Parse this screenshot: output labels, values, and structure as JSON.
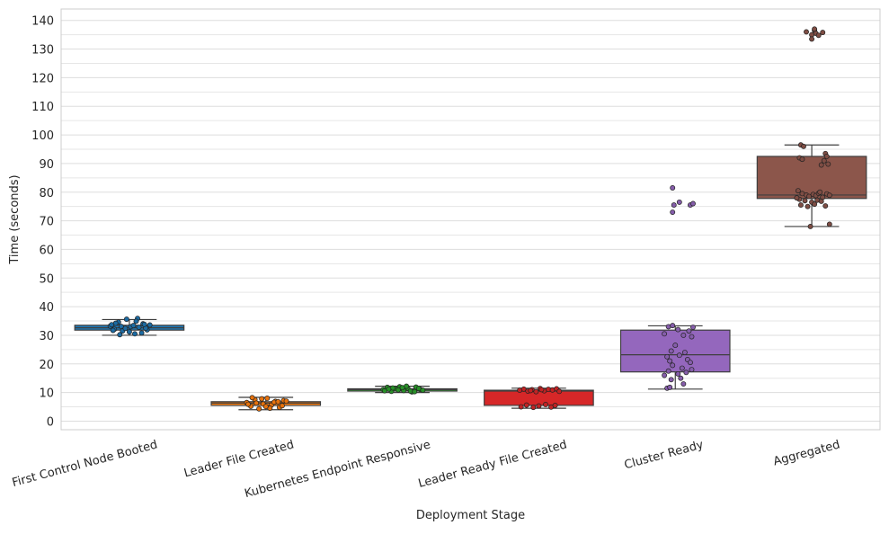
{
  "chart_data": {
    "type": "box",
    "xlabel": "Deployment Stage",
    "ylabel": "Time (seconds)",
    "ylim": [
      -3,
      144
    ],
    "y_ticks": [
      0,
      10,
      20,
      30,
      40,
      50,
      60,
      70,
      80,
      90,
      100,
      110,
      120,
      130,
      140
    ],
    "grid": true,
    "categories": [
      "First Control Node Booted",
      "Leader File Created",
      "Kubernetes Endpoint Responsive",
      "Leader Ready File Created",
      "Cluster Ready",
      "Aggregated"
    ],
    "colors": [
      "#1f77b4",
      "#ff7f0e",
      "#2ca02c",
      "#d62728",
      "#9467bd",
      "#8c564b"
    ],
    "boxes": [
      {
        "q1": 31.8,
        "median": 32.6,
        "q3": 33.5,
        "whisker_low": 30.0,
        "whisker_high": 35.5
      },
      {
        "q1": 5.5,
        "median": 6.3,
        "q3": 6.8,
        "whisker_low": 4.0,
        "whisker_high": 8.3
      },
      {
        "q1": 10.5,
        "median": 11.0,
        "q3": 11.3,
        "whisker_low": 10.0,
        "whisker_high": 12.2
      },
      {
        "q1": 5.5,
        "median": 10.5,
        "q3": 10.8,
        "whisker_low": 4.5,
        "whisker_high": 11.5
      },
      {
        "q1": 17.2,
        "median": 23.2,
        "q3": 31.8,
        "whisker_low": 11.2,
        "whisker_high": 33.3
      },
      {
        "q1": 77.8,
        "median": 79.0,
        "q3": 92.5,
        "whisker_low": 68.0,
        "whisker_high": 96.5
      }
    ],
    "points": [
      [
        {
          "dx": -0.14,
          "y": 33.2
        },
        {
          "dx": -0.11,
          "y": 32.1
        },
        {
          "dx": -0.08,
          "y": 34.6
        },
        {
          "dx": -0.05,
          "y": 31.5
        },
        {
          "dx": -0.02,
          "y": 35.6
        },
        {
          "dx": 0.01,
          "y": 33.0
        },
        {
          "dx": 0.04,
          "y": 30.5
        },
        {
          "dx": 0.07,
          "y": 32.8
        },
        {
          "dx": 0.1,
          "y": 34.0
        },
        {
          "dx": 0.13,
          "y": 31.9
        },
        {
          "dx": -0.13,
          "y": 33.7
        },
        {
          "dx": -0.07,
          "y": 30.2
        },
        {
          "dx": -0.03,
          "y": 32.4
        },
        {
          "dx": 0.03,
          "y": 33.4
        },
        {
          "dx": 0.06,
          "y": 35.9
        },
        {
          "dx": 0.12,
          "y": 32.5
        },
        {
          "dx": 0.15,
          "y": 33.6
        },
        {
          "dx": -0.1,
          "y": 34.2
        },
        {
          "dx": 0.0,
          "y": 31.2
        },
        {
          "dx": 0.09,
          "y": 30.8
        },
        {
          "dx": -0.06,
          "y": 33.1
        },
        {
          "dx": 0.05,
          "y": 34.9
        },
        {
          "dx": -0.12,
          "y": 31.7
        },
        {
          "dx": 0.11,
          "y": 33.8
        }
      ],
      [
        {
          "dx": -0.14,
          "y": 6.5
        },
        {
          "dx": -0.11,
          "y": 5.2
        },
        {
          "dx": -0.08,
          "y": 7.5
        },
        {
          "dx": -0.05,
          "y": 4.3
        },
        {
          "dx": -0.02,
          "y": 6.0
        },
        {
          "dx": 0.01,
          "y": 8.0
        },
        {
          "dx": 0.04,
          "y": 5.6
        },
        {
          "dx": 0.07,
          "y": 6.9
        },
        {
          "dx": 0.1,
          "y": 4.8
        },
        {
          "dx": 0.13,
          "y": 7.2
        },
        {
          "dx": -0.13,
          "y": 5.9
        },
        {
          "dx": -0.07,
          "y": 6.3
        },
        {
          "dx": -0.03,
          "y": 7.8
        },
        {
          "dx": 0.03,
          "y": 4.5
        },
        {
          "dx": 0.06,
          "y": 6.6
        },
        {
          "dx": 0.12,
          "y": 5.4
        },
        {
          "dx": 0.15,
          "y": 7.0
        },
        {
          "dx": -0.1,
          "y": 8.2
        },
        {
          "dx": 0.0,
          "y": 5.1
        },
        {
          "dx": 0.09,
          "y": 6.8
        }
      ],
      [
        {
          "dx": -0.14,
          "y": 11.0
        },
        {
          "dx": -0.11,
          "y": 11.8
        },
        {
          "dx": -0.08,
          "y": 10.4
        },
        {
          "dx": -0.05,
          "y": 11.3
        },
        {
          "dx": -0.02,
          "y": 12.0
        },
        {
          "dx": 0.01,
          "y": 10.7
        },
        {
          "dx": 0.04,
          "y": 11.5
        },
        {
          "dx": 0.07,
          "y": 10.2
        },
        {
          "dx": 0.1,
          "y": 11.9
        },
        {
          "dx": 0.13,
          "y": 11.1
        },
        {
          "dx": -0.13,
          "y": 10.6
        },
        {
          "dx": -0.07,
          "y": 11.6
        },
        {
          "dx": -0.03,
          "y": 10.9
        },
        {
          "dx": 0.03,
          "y": 12.2
        },
        {
          "dx": 0.06,
          "y": 10.5
        },
        {
          "dx": 0.12,
          "y": 11.4
        },
        {
          "dx": 0.15,
          "y": 10.8
        },
        {
          "dx": -0.1,
          "y": 11.2
        },
        {
          "dx": 0.0,
          "y": 11.7
        },
        {
          "dx": 0.09,
          "y": 10.3
        }
      ],
      [
        {
          "dx": -0.14,
          "y": 10.8
        },
        {
          "dx": -0.11,
          "y": 11.2
        },
        {
          "dx": -0.08,
          "y": 10.5
        },
        {
          "dx": -0.05,
          "y": 11.0
        },
        {
          "dx": -0.02,
          "y": 10.3
        },
        {
          "dx": 0.01,
          "y": 11.4
        },
        {
          "dx": 0.04,
          "y": 10.6
        },
        {
          "dx": 0.07,
          "y": 11.1
        },
        {
          "dx": 0.1,
          "y": 10.9
        },
        {
          "dx": 0.13,
          "y": 11.3
        },
        {
          "dx": -0.13,
          "y": 5.0
        },
        {
          "dx": -0.09,
          "y": 5.6
        },
        {
          "dx": -0.04,
          "y": 4.8
        },
        {
          "dx": 0.0,
          "y": 5.3
        },
        {
          "dx": 0.05,
          "y": 5.8
        },
        {
          "dx": 0.09,
          "y": 4.9
        },
        {
          "dx": 0.12,
          "y": 5.5
        },
        {
          "dx": -0.06,
          "y": 10.7
        },
        {
          "dx": 0.02,
          "y": 11.0
        },
        {
          "dx": 0.15,
          "y": 10.4
        }
      ],
      [
        {
          "dx": -0.02,
          "y": 81.5
        },
        {
          "dx": -0.01,
          "y": 75.5
        },
        {
          "dx": 0.03,
          "y": 76.5
        },
        {
          "dx": -0.02,
          "y": 73.0
        },
        {
          "dx": 0.11,
          "y": 75.5
        },
        {
          "dx": 0.13,
          "y": 76.0
        },
        {
          "dx": -0.05,
          "y": 33.0
        },
        {
          "dx": -0.02,
          "y": 33.4
        },
        {
          "dx": 0.02,
          "y": 32.0
        },
        {
          "dx": 0.1,
          "y": 31.5
        },
        {
          "dx": 0.13,
          "y": 32.8
        },
        {
          "dx": -0.08,
          "y": 30.5
        },
        {
          "dx": 0.06,
          "y": 30.0
        },
        {
          "dx": 0.12,
          "y": 29.5
        },
        {
          "dx": 0.0,
          "y": 26.5
        },
        {
          "dx": -0.03,
          "y": 24.5
        },
        {
          "dx": 0.03,
          "y": 23.0
        },
        {
          "dx": 0.07,
          "y": 24.0
        },
        {
          "dx": -0.06,
          "y": 22.5
        },
        {
          "dx": -0.04,
          "y": 21.0
        },
        {
          "dx": 0.09,
          "y": 21.5
        },
        {
          "dx": 0.11,
          "y": 20.5
        },
        {
          "dx": -0.02,
          "y": 19.5
        },
        {
          "dx": 0.05,
          "y": 18.5
        },
        {
          "dx": -0.05,
          "y": 17.5
        },
        {
          "dx": 0.08,
          "y": 17.0
        },
        {
          "dx": 0.12,
          "y": 18.0
        },
        {
          "dx": 0.02,
          "y": 16.5
        },
        {
          "dx": -0.08,
          "y": 16.0
        },
        {
          "dx": -0.03,
          "y": 14.5
        },
        {
          "dx": 0.06,
          "y": 13.0
        },
        {
          "dx": -0.06,
          "y": 11.5
        },
        {
          "dx": -0.04,
          "y": 11.8
        },
        {
          "dx": 0.04,
          "y": 15.0
        }
      ],
      [
        {
          "dx": -0.04,
          "y": 136.0
        },
        {
          "dx": 0.0,
          "y": 135.0
        },
        {
          "dx": 0.02,
          "y": 136.5
        },
        {
          "dx": 0.03,
          "y": 135.5
        },
        {
          "dx": 0.05,
          "y": 134.8
        },
        {
          "dx": 0.08,
          "y": 135.8
        },
        {
          "dx": 0.0,
          "y": 133.5
        },
        {
          "dx": 0.02,
          "y": 137.0
        },
        {
          "dx": -0.08,
          "y": 96.5
        },
        {
          "dx": -0.06,
          "y": 96.0
        },
        {
          "dx": 0.1,
          "y": 93.5
        },
        {
          "dx": 0.11,
          "y": 92.5
        },
        {
          "dx": -0.09,
          "y": 92.0
        },
        {
          "dx": -0.07,
          "y": 91.5
        },
        {
          "dx": 0.09,
          "y": 91.0
        },
        {
          "dx": 0.07,
          "y": 89.5
        },
        {
          "dx": 0.12,
          "y": 89.8
        },
        {
          "dx": -0.1,
          "y": 80.5
        },
        {
          "dx": -0.07,
          "y": 79.5
        },
        {
          "dx": -0.04,
          "y": 79.0
        },
        {
          "dx": -0.02,
          "y": 78.5
        },
        {
          "dx": 0.01,
          "y": 79.2
        },
        {
          "dx": 0.03,
          "y": 78.8
        },
        {
          "dx": 0.05,
          "y": 79.6
        },
        {
          "dx": 0.08,
          "y": 78.2
        },
        {
          "dx": 0.11,
          "y": 79.4
        },
        {
          "dx": 0.13,
          "y": 78.9
        },
        {
          "dx": -0.09,
          "y": 77.5
        },
        {
          "dx": -0.05,
          "y": 77.0
        },
        {
          "dx": 0.0,
          "y": 76.5
        },
        {
          "dx": 0.04,
          "y": 77.2
        },
        {
          "dx": 0.07,
          "y": 76.8
        },
        {
          "dx": -0.08,
          "y": 75.5
        },
        {
          "dx": -0.03,
          "y": 75.0
        },
        {
          "dx": 0.02,
          "y": 75.8
        },
        {
          "dx": 0.1,
          "y": 75.2
        },
        {
          "dx": -0.01,
          "y": 68.0
        },
        {
          "dx": 0.13,
          "y": 68.8
        },
        {
          "dx": 0.06,
          "y": 80.0
        },
        {
          "dx": -0.11,
          "y": 78.0
        }
      ]
    ]
  }
}
